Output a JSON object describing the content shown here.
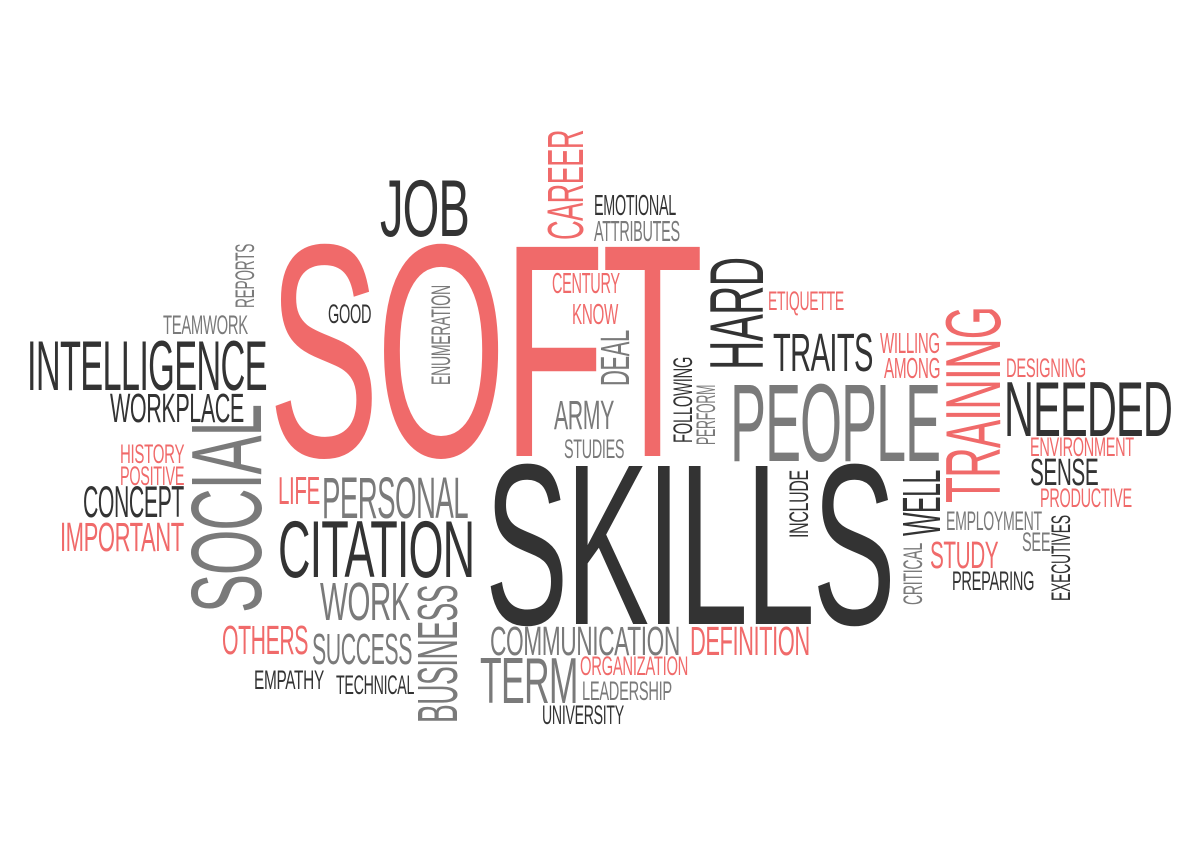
{
  "colors": {
    "dark": "#333333",
    "gray": "#7a7a7a",
    "red": "#f06a6a",
    "background": "#ffffff"
  },
  "words": {
    "soft": "SOFT",
    "skills": "SKILLS",
    "people": "PEOPLE",
    "job": "JOB",
    "career": "CAREER",
    "emotional": "EMOTIONAL",
    "attributes": "ATTRIBUTES",
    "century": "CENTURY",
    "know": "KNOW",
    "deal": "DEAL",
    "hard": "HARD",
    "etiquette": "ETIQUETTE",
    "traits": "TRAITS",
    "willing": "WILLING",
    "among": "AMONG",
    "training": "TRAINING",
    "designing": "DESIGNING",
    "needed": "NEEDED",
    "environment": "ENVIRONMENT",
    "sense": "SENSE",
    "productive": "PRODUCTIVE",
    "reports": "REPORTS",
    "teamwork": "TEAMWORK",
    "good": "GOOD",
    "enumeration": "ENUMERATION",
    "intelligence": "INTELLIGENCE",
    "workplace": "WORKPLACE",
    "history": "HISTORY",
    "positive": "POSITIVE",
    "concept": "CONCEPT",
    "important": "IMPORTANT",
    "social": "SOCIAL",
    "life": "LIFE",
    "personal": "PERSONAL",
    "citation": "CITATION",
    "work": "WORK",
    "others": "OTHERS",
    "success": "SUCCESS",
    "empathy": "EMPATHY",
    "technical": "TECHNICAL",
    "business": "BUSINESS",
    "army": "ARMY",
    "studies": "STUDIES",
    "following": "FOLLOWING",
    "perform": "PERFORM",
    "include": "INCLUDE",
    "well": "WELL",
    "employment": "EMPLOYMENT",
    "see": "SEE",
    "executives": "EXECUTIVES",
    "critical": "CRITICAL",
    "study": "STUDY",
    "preparing": "PREPARING",
    "communication": "COMMUNICATION",
    "definition": "DEFINITION",
    "term": "TERM",
    "organization": "ORGANIZATION",
    "leadership": "LEADERSHIP",
    "university": "UNIVERSITY"
  }
}
